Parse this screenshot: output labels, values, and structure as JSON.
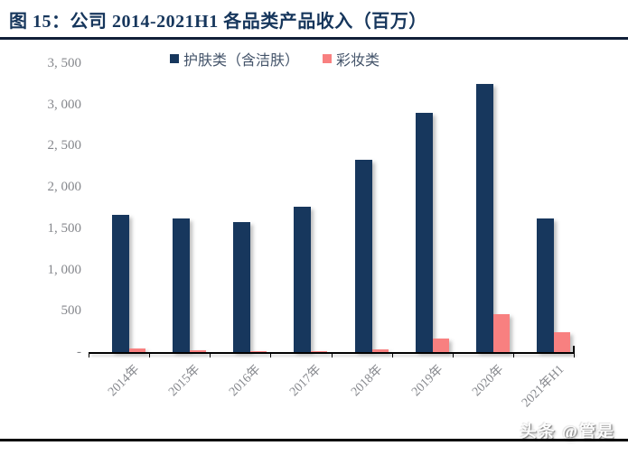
{
  "title": "图 15：公司 2014-2021H1 各品类产品收入（百万）",
  "watermark": "头条 @管是",
  "colors": {
    "skincare_bar": "#17375D",
    "makeup_bar": "#F88080",
    "title_text": "#16365C",
    "axis_label": "#85878C",
    "top_rule": "#111F38",
    "bottom_rule": "#000000"
  },
  "chart_data": {
    "type": "bar",
    "title": "图 15：公司 2014-2021H1 各品类产品收入（百万）",
    "categories": [
      "2014年",
      "2015年",
      "2016年",
      "2017年",
      "2018年",
      "2019年",
      "2020年",
      "2021年H1"
    ],
    "series": [
      {
        "name": "护肤类（含洁肤）",
        "color": "#17375D",
        "values": [
          1660,
          1620,
          1580,
          1760,
          2330,
          2900,
          3250,
          1620
        ]
      },
      {
        "name": "彩妆类",
        "color": "#F88080",
        "values": [
          40,
          20,
          10,
          15,
          30,
          160,
          455,
          240
        ]
      }
    ],
    "ylim": [
      0,
      3500
    ],
    "ytick_interval": 500,
    "ytick_labels": [
      "-",
      "500",
      "1, 000",
      "1, 500",
      "2, 000",
      "2, 500",
      "3, 000",
      "3, 500"
    ],
    "xlabel": "",
    "ylabel": "",
    "legend_position": "top",
    "grid": false
  }
}
